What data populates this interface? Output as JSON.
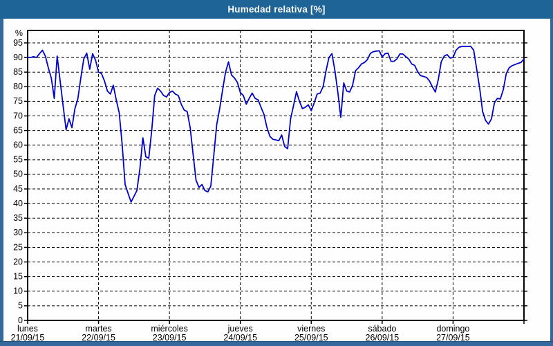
{
  "window": {
    "title": "Humedad relativa [%]"
  },
  "colors": {
    "titlebar_bg": "#1E6497",
    "titlebar_text": "#FFFFFF",
    "frame": "#33699C",
    "plot_bg": "#FDFEFD",
    "plot_border": "#000000",
    "grid": "#000000",
    "line": "#0000C8",
    "label_text": "#000000"
  },
  "chart_data": {
    "type": "line",
    "title": "Humedad relativa [%]",
    "ylabel": "%",
    "ylim": [
      0,
      95
    ],
    "ytick_step": 5,
    "grid": "dashed",
    "legend": "none",
    "x_unit": "hours",
    "x_range_hours": [
      0,
      168
    ],
    "days": [
      {
        "name": "lunes",
        "date": "21/09/15"
      },
      {
        "name": "martes",
        "date": "22/09/15"
      },
      {
        "name": "miércoles",
        "date": "23/09/15"
      },
      {
        "name": "jueves",
        "date": "24/09/15"
      },
      {
        "name": "viernes",
        "date": "25/09/15"
      },
      {
        "name": "sábado",
        "date": "26/09/15"
      },
      {
        "name": "domingo",
        "date": "27/09/15"
      }
    ],
    "series": [
      {
        "name": "Humedad relativa",
        "color": "#0000C8",
        "hourly_values": [
          90,
          90,
          90.3,
          90,
          91.3,
          92.5,
          90.5,
          86.5,
          83,
          76,
          90.5,
          82,
          73.5,
          65.3,
          69,
          66,
          72.5,
          76,
          83,
          89.5,
          91.5,
          86,
          91.3,
          89,
          85,
          84.5,
          82,
          78.5,
          77.5,
          80.5,
          75.5,
          71,
          60,
          46.5,
          43.5,
          40.5,
          42.5,
          44.5,
          52,
          62.5,
          56,
          55.5,
          65,
          77,
          79.5,
          78.5,
          77,
          76.5,
          78,
          78.5,
          77.5,
          77,
          74,
          72,
          71.5,
          66,
          57,
          48,
          45.5,
          46.5,
          44.5,
          44,
          46,
          56.5,
          67,
          72.5,
          79,
          85,
          88.5,
          84,
          83,
          81.5,
          78,
          77,
          74,
          76,
          77.8,
          76,
          75.5,
          73,
          70.5,
          66,
          63,
          62,
          61.8,
          61.5,
          63.5,
          59.5,
          58.8,
          69,
          73.5,
          78.3,
          75,
          72.5,
          73,
          73.8,
          71.8,
          74.5,
          77.5,
          77.8,
          80,
          85.5,
          90,
          91.3,
          85.5,
          78,
          69.5,
          81.3,
          78.5,
          78.2,
          80.5,
          85.5,
          86.5,
          87.8,
          88.3,
          89.3,
          91.4,
          92,
          92.2,
          92.3,
          90.2,
          91.3,
          91.5,
          88.7,
          88.7,
          89.5,
          91.2,
          91.2,
          90.3,
          89.5,
          87.8,
          87.3,
          85.2,
          83.8,
          83.5,
          83.2,
          82,
          80,
          78.2,
          82.5,
          88.5,
          90.5,
          91,
          89.8,
          90,
          92.5,
          93.5,
          93.8,
          93.8,
          93.8,
          93.8,
          92.5,
          86,
          79.5,
          71.5,
          68.5,
          67.2,
          69,
          74.5,
          76,
          75.8,
          79,
          84.5,
          86.5,
          87.2,
          87.6,
          88,
          88.3,
          89.5
        ]
      }
    ]
  }
}
